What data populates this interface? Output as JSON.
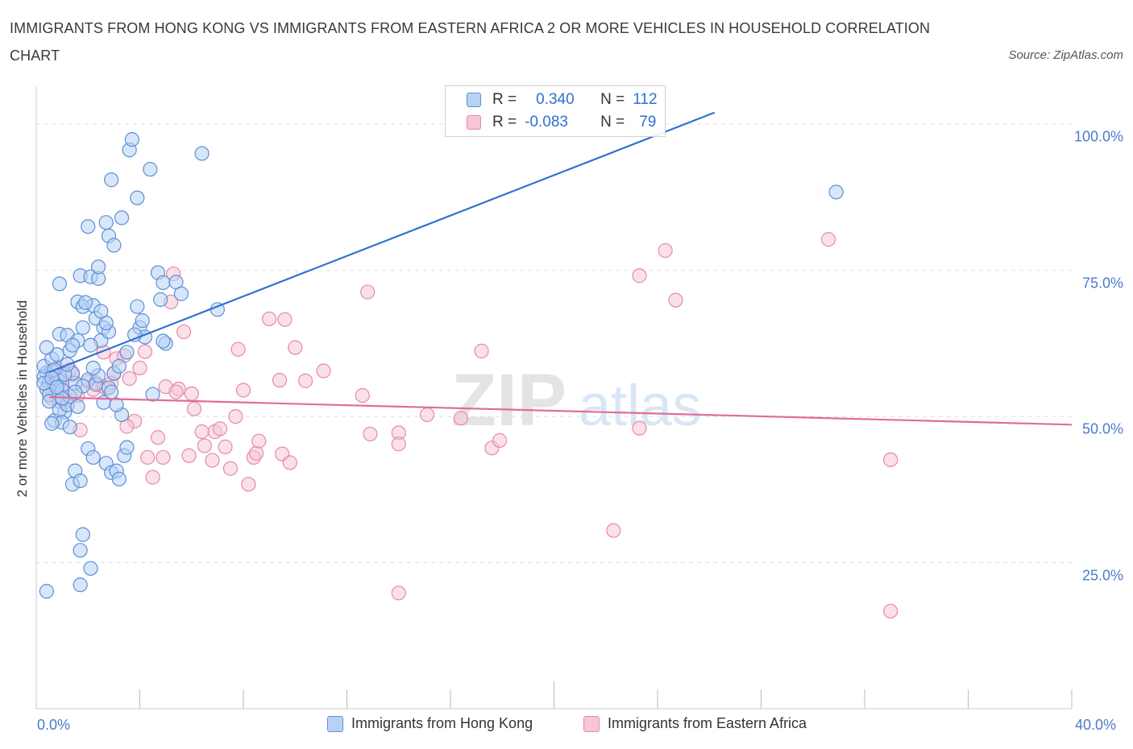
{
  "header": {
    "title": "IMMIGRANTS FROM HONG KONG VS IMMIGRANTS FROM EASTERN AFRICA 2 OR MORE VEHICLES IN HOUSEHOLD CORRELATION CHART",
    "source": "Source: ZipAtlas.com"
  },
  "legend_box": {
    "row1": {
      "r_label": "R =",
      "r_value": "0.340",
      "n_label": "N =",
      "n_value": "112"
    },
    "row2": {
      "r_label": "R =",
      "r_value": "-0.083",
      "n_label": "N =",
      "n_value": "79"
    }
  },
  "bottom_legend": {
    "hk": "Immigrants from Hong Kong",
    "ea": "Immigrants from Eastern Africa"
  },
  "watermark": {
    "zip": "ZIP",
    "atlas": "atlas"
  },
  "colors": {
    "blue_fill": "#b8d2f4",
    "blue_stroke": "#5b8fd8",
    "blue_line": "#2f72d0",
    "pink_fill": "#f6c6d6",
    "pink_stroke": "#e68aa8",
    "pink_line": "#e06d98",
    "tick_text": "#4a7cc9"
  },
  "chart_data": {
    "type": "scatter",
    "title": "IMMIGRANTS FROM HONG KONG VS IMMIGRANTS FROM EASTERN AFRICA 2 OR MORE VEHICLES IN HOUSEHOLD CORRELATION CHART",
    "xlabel": "",
    "ylabel": "2 or more Vehicles in Household",
    "xlim": [
      0,
      40
    ],
    "ylim": [
      0,
      105
    ],
    "x_tick_labels": [
      "0.0%",
      "40.0%"
    ],
    "y_tick_labels": [
      "100.0%",
      "75.0%",
      "50.0%",
      "25.0%"
    ],
    "y_ticks": [
      100,
      75,
      50,
      25
    ],
    "grid": true,
    "series": [
      {
        "name": "Immigrants from Hong Kong",
        "R": 0.34,
        "N": 112,
        "trend": {
          "x0": 0.5,
          "y0": 57.6,
          "x1": 26.2,
          "y1": 102.0
        },
        "points": [
          [
            0.4,
            57.5
          ],
          [
            0.3,
            56.8
          ],
          [
            0.5,
            55.9
          ],
          [
            0.6,
            57.9
          ],
          [
            0.4,
            54.7
          ],
          [
            0.8,
            56.3
          ],
          [
            0.3,
            58.6
          ],
          [
            0.7,
            55.4
          ],
          [
            0.5,
            53.7
          ],
          [
            0.9,
            56.1
          ],
          [
            1.0,
            54.5
          ],
          [
            0.6,
            59.9
          ],
          [
            0.8,
            60.6
          ],
          [
            0.4,
            61.8
          ],
          [
            0.9,
            52.6
          ],
          [
            1.1,
            50.8
          ],
          [
            0.7,
            49.3
          ],
          [
            0.9,
            51.1
          ],
          [
            1.2,
            52.0
          ],
          [
            1.0,
            49.0
          ],
          [
            0.6,
            48.8
          ],
          [
            1.3,
            53.4
          ],
          [
            1.5,
            55.7
          ],
          [
            1.4,
            57.4
          ],
          [
            0.9,
            64.1
          ],
          [
            1.2,
            63.9
          ],
          [
            1.3,
            61.3
          ],
          [
            1.6,
            63.0
          ],
          [
            1.8,
            65.2
          ],
          [
            1.4,
            62.2
          ],
          [
            0.9,
            72.7
          ],
          [
            1.6,
            69.6
          ],
          [
            1.8,
            68.8
          ],
          [
            2.2,
            69.0
          ],
          [
            1.9,
            69.5
          ],
          [
            1.7,
            74.1
          ],
          [
            2.1,
            73.9
          ],
          [
            2.4,
            73.6
          ],
          [
            2.4,
            75.6
          ],
          [
            2.6,
            65.2
          ],
          [
            2.3,
            66.8
          ],
          [
            2.5,
            63.0
          ],
          [
            2.8,
            64.5
          ],
          [
            2.7,
            66.0
          ],
          [
            2.1,
            62.2
          ],
          [
            2.5,
            68.0
          ],
          [
            2.0,
            56.3
          ],
          [
            2.3,
            55.5
          ],
          [
            2.6,
            52.4
          ],
          [
            2.8,
            54.9
          ],
          [
            3.0,
            57.4
          ],
          [
            3.2,
            58.6
          ],
          [
            3.5,
            61.0
          ],
          [
            3.3,
            50.3
          ],
          [
            2.0,
            44.5
          ],
          [
            2.2,
            43.0
          ],
          [
            2.7,
            42.0
          ],
          [
            2.9,
            40.4
          ],
          [
            3.1,
            40.7
          ],
          [
            3.2,
            39.3
          ],
          [
            3.4,
            43.3
          ],
          [
            3.5,
            44.7
          ],
          [
            1.5,
            40.7
          ],
          [
            1.4,
            38.4
          ],
          [
            1.7,
            39.0
          ],
          [
            1.8,
            29.8
          ],
          [
            1.7,
            27.1
          ],
          [
            2.1,
            24.0
          ],
          [
            1.7,
            21.2
          ],
          [
            0.4,
            20.1
          ],
          [
            2.0,
            82.5
          ],
          [
            2.8,
            80.9
          ],
          [
            3.0,
            79.3
          ],
          [
            2.7,
            83.2
          ],
          [
            3.3,
            84.0
          ],
          [
            3.9,
            87.4
          ],
          [
            2.9,
            90.5
          ],
          [
            3.6,
            95.6
          ],
          [
            3.7,
            97.4
          ],
          [
            4.4,
            92.3
          ],
          [
            6.4,
            95.0
          ],
          [
            4.7,
            74.6
          ],
          [
            4.9,
            72.9
          ],
          [
            5.4,
            73.0
          ],
          [
            5.6,
            71.0
          ],
          [
            4.8,
            70.0
          ],
          [
            3.9,
            68.8
          ],
          [
            4.0,
            65.2
          ],
          [
            4.2,
            63.6
          ],
          [
            3.8,
            64.0
          ],
          [
            4.1,
            66.4
          ],
          [
            5.0,
            62.5
          ],
          [
            4.9,
            62.9
          ],
          [
            4.5,
            53.8
          ],
          [
            7.0,
            68.3
          ],
          [
            30.9,
            88.4
          ],
          [
            1.1,
            57.2
          ],
          [
            0.7,
            58.0
          ],
          [
            1.2,
            58.9
          ],
          [
            2.4,
            57.0
          ],
          [
            0.3,
            55.7
          ],
          [
            0.5,
            52.6
          ],
          [
            1.3,
            48.2
          ],
          [
            0.6,
            56.6
          ],
          [
            1.0,
            53.1
          ],
          [
            2.2,
            58.3
          ],
          [
            1.8,
            55.2
          ],
          [
            1.5,
            54.2
          ],
          [
            2.9,
            54.2
          ],
          [
            3.1,
            52.0
          ],
          [
            0.8,
            55.0
          ],
          [
            1.6,
            51.7
          ]
        ]
      },
      {
        "name": "Immigrants from Eastern Africa",
        "R": -0.083,
        "N": 79,
        "trend": {
          "x0": 0.5,
          "y0": 53.3,
          "x1": 40.0,
          "y1": 48.6
        },
        "points": [
          [
            0.5,
            55.0
          ],
          [
            0.6,
            53.1
          ],
          [
            0.8,
            58.2
          ],
          [
            1.0,
            55.6
          ],
          [
            1.1,
            52.4
          ],
          [
            1.4,
            57.2
          ],
          [
            1.6,
            53.6
          ],
          [
            1.7,
            47.7
          ],
          [
            2.0,
            55.9
          ],
          [
            2.2,
            54.6
          ],
          [
            2.3,
            55.8
          ],
          [
            2.6,
            55.1
          ],
          [
            2.7,
            54.8
          ],
          [
            2.6,
            61.0
          ],
          [
            3.0,
            57.3
          ],
          [
            3.1,
            59.9
          ],
          [
            3.4,
            60.4
          ],
          [
            3.6,
            56.5
          ],
          [
            3.8,
            49.2
          ],
          [
            4.0,
            58.3
          ],
          [
            4.2,
            61.1
          ],
          [
            4.3,
            43.0
          ],
          [
            4.5,
            39.6
          ],
          [
            4.7,
            46.4
          ],
          [
            4.9,
            43.0
          ],
          [
            5.0,
            55.1
          ],
          [
            5.2,
            69.6
          ],
          [
            5.3,
            74.4
          ],
          [
            5.5,
            54.7
          ],
          [
            5.4,
            54.2
          ],
          [
            5.7,
            64.5
          ],
          [
            5.9,
            43.3
          ],
          [
            6.1,
            51.3
          ],
          [
            6.4,
            47.4
          ],
          [
            6.5,
            45.0
          ],
          [
            6.8,
            42.5
          ],
          [
            6.9,
            47.4
          ],
          [
            7.1,
            47.9
          ],
          [
            7.3,
            44.8
          ],
          [
            7.5,
            41.1
          ],
          [
            7.7,
            50.0
          ],
          [
            7.8,
            61.5
          ],
          [
            8.0,
            54.5
          ],
          [
            8.2,
            38.4
          ],
          [
            8.4,
            43.0
          ],
          [
            8.5,
            43.7
          ],
          [
            8.6,
            45.8
          ],
          [
            9.0,
            66.7
          ],
          [
            9.4,
            56.2
          ],
          [
            9.6,
            66.6
          ],
          [
            9.5,
            43.6
          ],
          [
            9.8,
            42.1
          ],
          [
            10.0,
            61.8
          ],
          [
            10.4,
            56.1
          ],
          [
            11.1,
            57.8
          ],
          [
            12.8,
            71.3
          ],
          [
            12.6,
            53.6
          ],
          [
            12.9,
            47.0
          ],
          [
            14.0,
            47.2
          ],
          [
            14.0,
            45.3
          ],
          [
            14.0,
            19.8
          ],
          [
            15.1,
            50.3
          ],
          [
            16.4,
            49.7
          ],
          [
            17.2,
            61.2
          ],
          [
            17.6,
            44.6
          ],
          [
            17.9,
            45.9
          ],
          [
            22.3,
            30.5
          ],
          [
            23.3,
            74.1
          ],
          [
            23.3,
            48.0
          ],
          [
            24.3,
            78.4
          ],
          [
            24.7,
            69.9
          ],
          [
            30.6,
            80.3
          ],
          [
            33.0,
            42.6
          ],
          [
            33.0,
            16.7
          ],
          [
            3.5,
            48.3
          ],
          [
            6.0,
            53.9
          ],
          [
            2.9,
            55.7
          ],
          [
            1.3,
            58.0
          ],
          [
            0.9,
            53.5
          ]
        ]
      }
    ]
  }
}
